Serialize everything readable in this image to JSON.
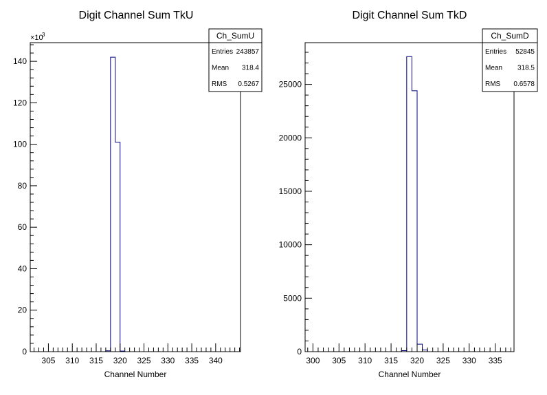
{
  "chart_data": [
    {
      "type": "bar",
      "title": "Digit Channel Sum TkU",
      "xlabel": "Channel Number",
      "ylabel": "",
      "xlim": [
        301.2,
        345.2
      ],
      "ylim": [
        0,
        149000
      ],
      "x_ticks": [
        305,
        310,
        315,
        320,
        325,
        330,
        335,
        340
      ],
      "y_ticks": [
        0,
        20000,
        40000,
        60000,
        80000,
        100000,
        120000,
        140000
      ],
      "y_tick_labels": [
        "0",
        "20",
        "40",
        "60",
        "80",
        "100",
        "120",
        "140"
      ],
      "y_exponent_label": "×10",
      "y_exponent_power": "3",
      "bin_width": 1,
      "bins": [
        {
          "x": 317,
          "value": 400
        },
        {
          "x": 318,
          "value": 142000
        },
        {
          "x": 319,
          "value": 101000
        },
        {
          "x": 320,
          "value": 300
        }
      ],
      "grid": false,
      "stats": {
        "name": "Ch_SumU",
        "rows": [
          {
            "label": "Entries",
            "value": "243857"
          },
          {
            "label": "Mean",
            "value": "318.4"
          },
          {
            "label": "RMS",
            "value": "0.5267"
          }
        ]
      },
      "legend_position": "top-right",
      "line_color": "#000080"
    },
    {
      "type": "bar",
      "title": "Digit Channel Sum TkD",
      "xlabel": "Channel Number",
      "ylabel": "",
      "xlim": [
        298.5,
        338.6
      ],
      "ylim": [
        0,
        28900
      ],
      "x_ticks": [
        300,
        305,
        310,
        315,
        320,
        325,
        330,
        335
      ],
      "y_ticks": [
        0,
        5000,
        10000,
        15000,
        20000,
        25000
      ],
      "y_tick_labels": [
        "0",
        "5000",
        "10000",
        "15000",
        "20000",
        "25000"
      ],
      "bin_width": 1,
      "bins": [
        {
          "x": 317,
          "value": 100
        },
        {
          "x": 318,
          "value": 27600
        },
        {
          "x": 319,
          "value": 24400
        },
        {
          "x": 320,
          "value": 700
        },
        {
          "x": 321,
          "value": 150
        }
      ],
      "grid": false,
      "stats": {
        "name": "Ch_SumD",
        "rows": [
          {
            "label": "Entries",
            "value": "52845"
          },
          {
            "label": "Mean",
            "value": "318.5"
          },
          {
            "label": "RMS",
            "value": "0.6578"
          }
        ]
      },
      "legend_position": "top-right",
      "line_color": "#000080"
    }
  ]
}
